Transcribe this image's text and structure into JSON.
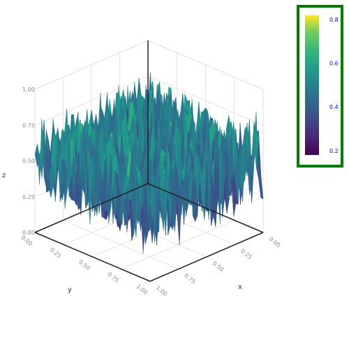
{
  "chart_data": {
    "type": "surface",
    "description_axes": {
      "x": {
        "label": "x",
        "ticks": [
          "0.00",
          "0.25",
          "0.50",
          "0.75",
          "1.00"
        ],
        "range": [
          0,
          1
        ]
      },
      "y": {
        "label": "y",
        "ticks": [
          "0.00",
          "0.25",
          "0.50",
          "0.75",
          "1.00"
        ],
        "range": [
          0,
          1
        ]
      },
      "z": {
        "label": "z",
        "ticks": [
          "0.00",
          "0.25",
          "0.50",
          "0.75",
          "1.00"
        ],
        "range": [
          0,
          1
        ]
      }
    },
    "colorbar": {
      "colorscale": "viridis",
      "range": [
        0.18,
        0.82
      ],
      "tick_labels": [
        "0.2",
        "0.4",
        "0.6",
        "0.8"
      ],
      "tick_values": [
        0.2,
        0.4,
        0.6,
        0.8
      ],
      "tick_label_color": "#0000ee",
      "highlight_border_color": "#008000"
    },
    "surface": {
      "grid_size": 50,
      "z_mean": 0.5,
      "z_amplitude": 0.35,
      "note_values": "random noise surface"
    },
    "grid": true,
    "legend": "none"
  }
}
